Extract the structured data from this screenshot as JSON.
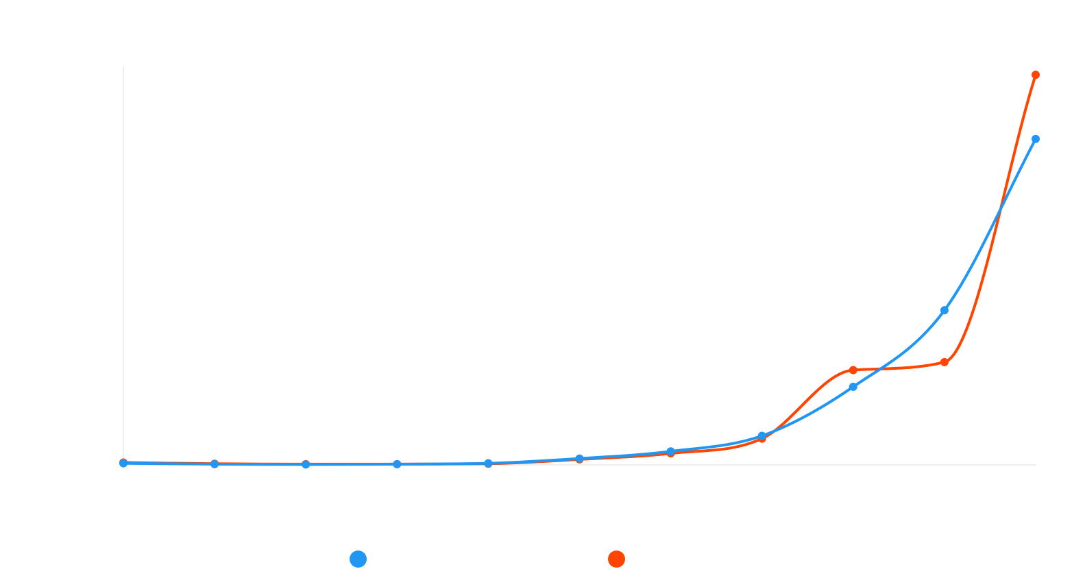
{
  "chart_data": {
    "type": "line",
    "title": "",
    "xlabel": "",
    "ylabel": "",
    "categories": [
      "",
      "",
      "",
      "",
      "",
      "",
      "",
      "",
      "",
      "",
      ""
    ],
    "ylim": [
      0,
      100
    ],
    "grid": false,
    "legend_position": "bottom",
    "series": [
      {
        "color": "#2196F3",
        "values": [
          0.4,
          0.2,
          0.1,
          0.2,
          0.4,
          1.6,
          3.4,
          7.3,
          19.6,
          38.8,
          81.8
        ],
        "label": ""
      },
      {
        "color": "#FF4500",
        "values": [
          0.6,
          0.3,
          0.2,
          0.2,
          0.3,
          1.4,
          2.9,
          6.6,
          23.8,
          25.8,
          97.9
        ],
        "label": ""
      }
    ]
  }
}
